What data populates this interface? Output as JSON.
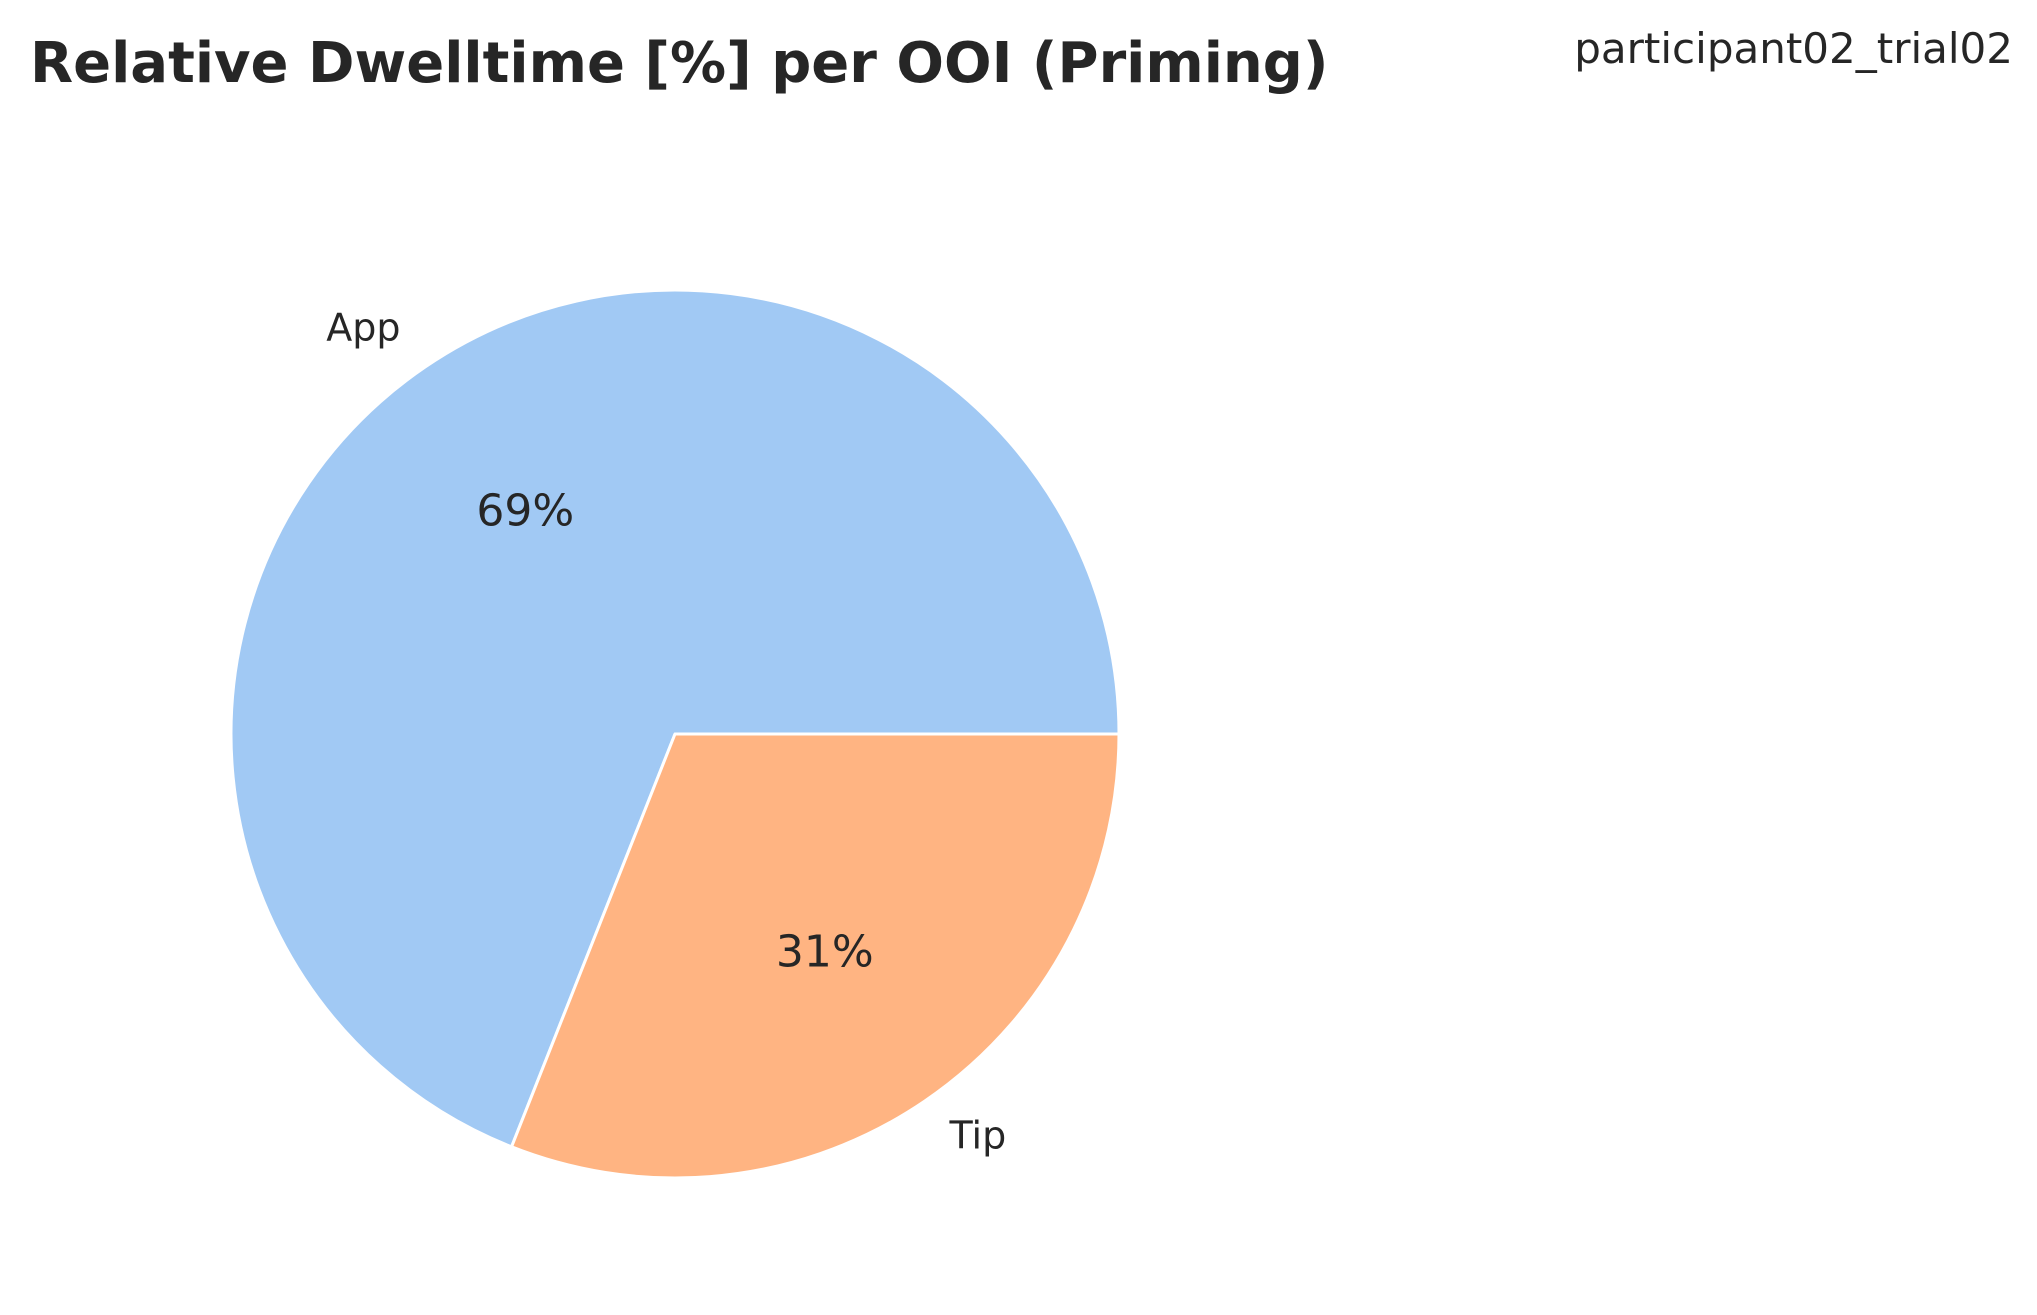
{
  "chart_data": {
    "type": "pie",
    "title": "Relative Dwelltime [%] per OOI (Priming)",
    "subtitle": "participant02_trial02",
    "categories": [
      "App",
      "Tip"
    ],
    "values": [
      69,
      31
    ],
    "value_labels": [
      "69%",
      "31%"
    ],
    "colors": [
      "#a1c9f4",
      "#ffb482"
    ],
    "start_angle_deg": 0,
    "direction": "counterclockwise",
    "legend": "none"
  }
}
